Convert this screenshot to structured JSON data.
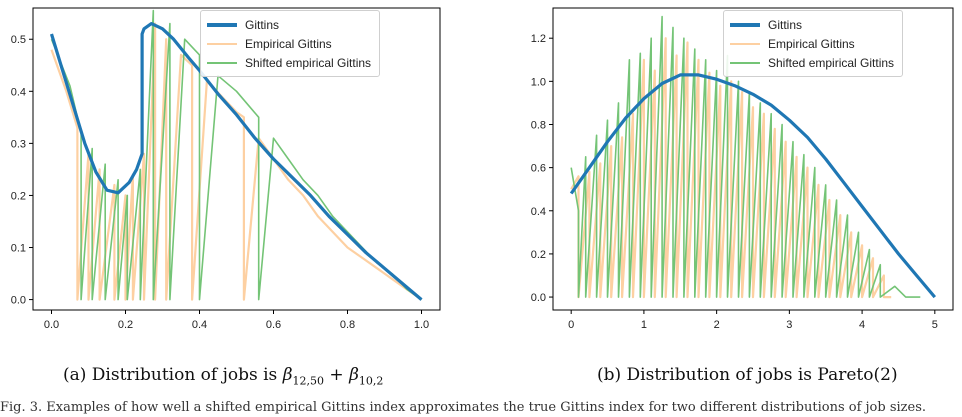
{
  "chart_data": [
    {
      "type": "line",
      "panel": "a",
      "xlim": [
        -0.05,
        1.05
      ],
      "ylim": [
        -0.02,
        0.56
      ],
      "xticks": [
        0.0,
        0.2,
        0.4,
        0.6,
        0.8,
        1.0
      ],
      "xticklabels": [
        "0.0",
        "0.2",
        "0.4",
        "0.6",
        "0.8",
        "1.0"
      ],
      "yticks": [
        0.0,
        0.1,
        0.2,
        0.3,
        0.4,
        0.5
      ],
      "yticklabels": [
        "0.0",
        "0.1",
        "0.2",
        "0.3",
        "0.4",
        "0.5"
      ],
      "legend_position": "top-right",
      "series": [
        {
          "name": "Gittins",
          "color": "#1f77b4",
          "x": [
            0.0,
            0.03,
            0.06,
            0.09,
            0.12,
            0.15,
            0.18,
            0.21,
            0.23,
            0.245,
            0.245,
            0.25,
            0.27,
            0.3,
            0.33,
            0.37,
            0.4,
            0.45,
            0.5,
            0.55,
            0.6,
            0.65,
            0.7,
            0.75,
            0.8,
            0.85,
            0.9,
            0.95,
            1.0
          ],
          "y": [
            0.51,
            0.44,
            0.37,
            0.3,
            0.245,
            0.21,
            0.205,
            0.225,
            0.25,
            0.28,
            0.51,
            0.52,
            0.53,
            0.52,
            0.5,
            0.465,
            0.44,
            0.395,
            0.355,
            0.31,
            0.27,
            0.235,
            0.2,
            0.16,
            0.125,
            0.09,
            0.06,
            0.03,
            0.0
          ]
        },
        {
          "name": "Empirical Gittins",
          "color": "#fdd0a2",
          "x": [
            0.0,
            0.04,
            0.07,
            0.07,
            0.1,
            0.1,
            0.13,
            0.13,
            0.17,
            0.17,
            0.2,
            0.2,
            0.22,
            0.22,
            0.25,
            0.25,
            0.28,
            0.28,
            0.31,
            0.31,
            0.35,
            0.38,
            0.38,
            0.42,
            0.46,
            0.5,
            0.52,
            0.52,
            0.56,
            0.6,
            0.64,
            0.68,
            0.72,
            0.76,
            0.8,
            0.84,
            0.88,
            0.92,
            0.96,
            1.0
          ],
          "y": [
            0.48,
            0.4,
            0.33,
            0.0,
            0.28,
            0.0,
            0.25,
            0.0,
            0.22,
            0.0,
            0.2,
            0.0,
            0.24,
            0.0,
            0.28,
            0.0,
            0.53,
            0.0,
            0.5,
            0.0,
            0.47,
            0.45,
            0.0,
            0.42,
            0.39,
            0.36,
            0.35,
            0.0,
            0.31,
            0.27,
            0.23,
            0.2,
            0.16,
            0.13,
            0.1,
            0.08,
            0.06,
            0.04,
            0.02,
            0.0
          ]
        },
        {
          "name": "Shifted empirical Gittins",
          "color": "#74c476",
          "x": [
            0.0,
            0.05,
            0.08,
            0.08,
            0.11,
            0.11,
            0.145,
            0.145,
            0.18,
            0.18,
            0.205,
            0.205,
            0.24,
            0.24,
            0.275,
            0.275,
            0.32,
            0.32,
            0.36,
            0.4,
            0.4,
            0.45,
            0.5,
            0.56,
            0.56,
            0.6,
            0.64,
            0.68,
            0.72,
            0.76,
            0.8,
            0.84,
            0.88,
            0.92,
            0.96,
            1.0
          ],
          "y": [
            0.5,
            0.41,
            0.32,
            0.0,
            0.29,
            0.0,
            0.26,
            0.0,
            0.23,
            0.0,
            0.2,
            0.0,
            0.25,
            0.0,
            0.555,
            0.0,
            0.53,
            0.0,
            0.5,
            0.47,
            0.0,
            0.43,
            0.4,
            0.35,
            0.0,
            0.31,
            0.27,
            0.23,
            0.2,
            0.16,
            0.13,
            0.1,
            0.07,
            0.05,
            0.02,
            0.0
          ]
        }
      ]
    },
    {
      "type": "line",
      "panel": "b",
      "xlim": [
        -0.25,
        5.25
      ],
      "ylim": [
        -0.06,
        1.34
      ],
      "xticks": [
        0,
        1,
        2,
        3,
        4,
        5
      ],
      "xticklabels": [
        "0",
        "1",
        "2",
        "3",
        "4",
        "5"
      ],
      "yticks": [
        0.0,
        0.2,
        0.4,
        0.6,
        0.8,
        1.0,
        1.2
      ],
      "yticklabels": [
        "0.0",
        "0.2",
        "0.4",
        "0.6",
        "0.8",
        "1.0",
        "1.2"
      ],
      "legend_position": "top-right",
      "series": [
        {
          "name": "Gittins",
          "color": "#1f77b4",
          "x": [
            0.0,
            0.25,
            0.5,
            0.75,
            1.0,
            1.25,
            1.5,
            1.75,
            2.0,
            2.25,
            2.5,
            2.75,
            3.0,
            3.25,
            3.5,
            3.75,
            4.0,
            4.25,
            4.5,
            4.75,
            5.0
          ],
          "y": [
            0.48,
            0.6,
            0.72,
            0.83,
            0.92,
            0.99,
            1.03,
            1.03,
            1.01,
            0.98,
            0.94,
            0.89,
            0.82,
            0.74,
            0.64,
            0.53,
            0.42,
            0.31,
            0.2,
            0.1,
            0.0
          ]
        },
        {
          "name": "Empirical Gittins",
          "color": "#fdd0a2",
          "x": [
            0.0,
            0.1,
            0.1,
            0.25,
            0.25,
            0.4,
            0.4,
            0.55,
            0.55,
            0.7,
            0.7,
            0.85,
            0.85,
            1.0,
            1.0,
            1.15,
            1.15,
            1.3,
            1.3,
            1.45,
            1.45,
            1.6,
            1.6,
            1.75,
            1.75,
            1.9,
            1.9,
            2.05,
            2.05,
            2.2,
            2.2,
            2.35,
            2.35,
            2.5,
            2.5,
            2.65,
            2.65,
            2.8,
            2.8,
            2.95,
            2.95,
            3.1,
            3.1,
            3.25,
            3.25,
            3.4,
            3.4,
            3.55,
            3.55,
            3.7,
            3.7,
            3.85,
            3.85,
            4.0,
            4.0,
            4.15,
            4.15,
            4.3,
            4.3,
            4.4
          ],
          "y": [
            0.5,
            0.56,
            0.0,
            0.58,
            0.0,
            0.62,
            0.0,
            0.7,
            0.0,
            0.74,
            0.0,
            0.85,
            0.0,
            1.1,
            0.0,
            1.05,
            0.0,
            1.2,
            0.0,
            1.12,
            0.0,
            1.18,
            0.0,
            1.1,
            0.0,
            1.04,
            0.0,
            0.98,
            0.0,
            1.0,
            0.0,
            0.95,
            0.0,
            0.88,
            0.0,
            0.85,
            0.0,
            0.78,
            0.0,
            0.72,
            0.0,
            0.65,
            0.0,
            0.6,
            0.0,
            0.52,
            0.0,
            0.45,
            0.0,
            0.38,
            0.0,
            0.3,
            0.0,
            0.24,
            0.0,
            0.18,
            0.0,
            0.1,
            0.0,
            0.0
          ]
        },
        {
          "name": "Shifted empirical Gittins",
          "color": "#74c476",
          "x": [
            0.0,
            0.1,
            0.1,
            0.2,
            0.2,
            0.35,
            0.35,
            0.5,
            0.5,
            0.65,
            0.65,
            0.8,
            0.8,
            0.95,
            0.95,
            1.1,
            1.1,
            1.25,
            1.25,
            1.4,
            1.4,
            1.55,
            1.55,
            1.7,
            1.7,
            1.85,
            1.85,
            2.0,
            2.0,
            2.15,
            2.15,
            2.3,
            2.3,
            2.45,
            2.45,
            2.6,
            2.6,
            2.75,
            2.75,
            2.9,
            2.9,
            3.05,
            3.05,
            3.2,
            3.2,
            3.35,
            3.35,
            3.5,
            3.5,
            3.65,
            3.65,
            3.8,
            3.8,
            3.95,
            3.95,
            4.1,
            4.1,
            4.25,
            4.25,
            4.45,
            4.6,
            4.8
          ],
          "y": [
            0.6,
            0.4,
            0.0,
            0.65,
            0.0,
            0.75,
            0.0,
            0.82,
            0.0,
            0.9,
            0.0,
            1.1,
            0.0,
            1.13,
            0.0,
            1.2,
            0.0,
            1.3,
            0.0,
            1.25,
            0.0,
            1.2,
            0.0,
            1.15,
            0.0,
            1.1,
            0.0,
            1.05,
            0.0,
            1.12,
            0.0,
            1.0,
            0.0,
            0.95,
            0.0,
            0.9,
            0.0,
            0.85,
            0.0,
            0.8,
            0.0,
            0.72,
            0.0,
            0.66,
            0.0,
            0.6,
            0.0,
            0.52,
            0.0,
            0.45,
            0.0,
            0.38,
            0.0,
            0.3,
            0.0,
            0.22,
            0.0,
            0.15,
            0.0,
            0.05,
            0.0,
            0.0
          ]
        }
      ]
    }
  ],
  "captions": {
    "a_prefix": "(a) Distribution of jobs is ",
    "a_math": "β",
    "a_sub1": "12,50",
    "a_plus": " + β",
    "a_sub2": "10,2",
    "b": "(b) Distribution of jobs is Pareto(2)"
  },
  "body_text": "Fig. 3.   Examples of how well a shifted empirical Gittins index approximates the true Gittins index for two different distributions of job sizes."
}
